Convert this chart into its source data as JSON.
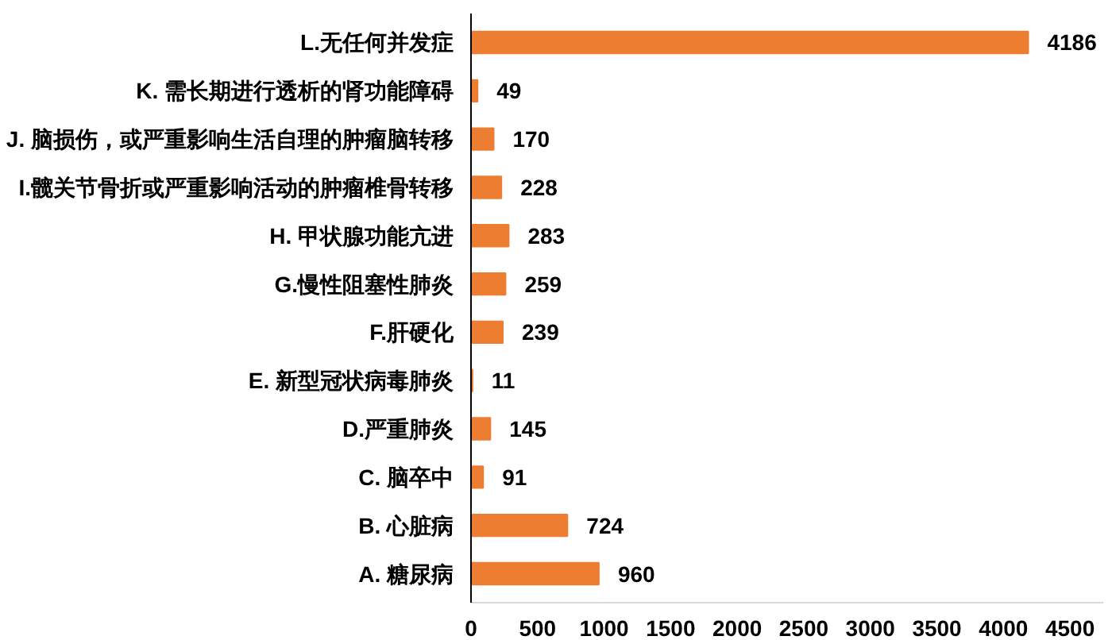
{
  "chart_data": {
    "type": "bar",
    "orientation": "horizontal",
    "categories": [
      "L.无任何并发症",
      "K. 需长期进行透析的肾功能障碍",
      "J. 脑损伤，或严重影响生活自理的肿瘤脑转移",
      "I.髋关节骨折或严重影响活动的肿瘤椎骨转移",
      "H. 甲状腺功能亢进",
      "G.慢性阻塞性肺炎",
      "F.肝硬化",
      "E. 新型冠状病毒肺炎",
      "D.严重肺炎",
      "C. 脑卒中",
      "B. 心脏病",
      "A. 糖尿病"
    ],
    "values": [
      4186,
      49,
      170,
      228,
      283,
      259,
      239,
      11,
      145,
      91,
      724,
      960
    ],
    "color": "#ed7d31",
    "xlim": [
      0,
      4750
    ],
    "xticks": [
      0,
      500,
      1000,
      1500,
      2000,
      2500,
      3000,
      3500,
      4000,
      4500
    ],
    "data_labels": true,
    "grid": false
  }
}
